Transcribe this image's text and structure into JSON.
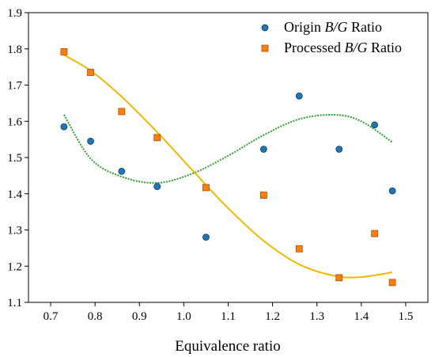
{
  "chart_data": {
    "type": "scatter",
    "xlabel": "Equivalence ratio",
    "ylabel": "",
    "xlim": [
      0.65,
      1.55
    ],
    "ylim": [
      1.1,
      1.9
    ],
    "xticks": [
      "0.7",
      "0.8",
      "0.9",
      "1.0",
      "1.1",
      "1.2",
      "1.3",
      "1.4",
      "1.5"
    ],
    "yticks": [
      "1.1",
      "1.2",
      "1.3",
      "1.4",
      "1.5",
      "1.6",
      "1.7",
      "1.8",
      "1.9"
    ],
    "grid": false,
    "legend_position": "top-right",
    "series": [
      {
        "legend_parts": [
          "Origin ",
          "B/G",
          " Ratio"
        ],
        "marker": "circle",
        "color": "#1f77b4",
        "x": [
          0.73,
          0.79,
          0.86,
          0.94,
          1.05,
          1.18,
          1.26,
          1.35,
          1.43,
          1.47
        ],
        "y": [
          1.585,
          1.545,
          1.462,
          1.42,
          1.28,
          1.523,
          1.67,
          1.523,
          1.59,
          1.408
        ],
        "fit": {
          "style": "dotted",
          "color": "#2ca02c",
          "x": [
            0.73,
            0.79,
            0.86,
            0.94,
            1.02,
            1.1,
            1.18,
            1.26,
            1.34,
            1.4,
            1.47
          ],
          "y": [
            1.618,
            1.497,
            1.447,
            1.43,
            1.456,
            1.505,
            1.562,
            1.606,
            1.618,
            1.6,
            1.542
          ]
        }
      },
      {
        "legend_parts": [
          "Processed ",
          "B/G",
          " Ratio"
        ],
        "marker": "square",
        "color": "#ff7f0e",
        "x": [
          0.73,
          0.79,
          0.86,
          0.94,
          1.05,
          1.18,
          1.26,
          1.35,
          1.43,
          1.47
        ],
        "y": [
          1.792,
          1.735,
          1.627,
          1.555,
          1.417,
          1.396,
          1.248,
          1.168,
          1.29,
          1.155
        ],
        "fit": {
          "style": "solid",
          "color": "#f0b800",
          "x": [
            0.73,
            0.79,
            0.86,
            0.94,
            1.02,
            1.1,
            1.18,
            1.26,
            1.34,
            1.4,
            1.47
          ],
          "y": [
            1.783,
            1.74,
            1.668,
            1.57,
            1.464,
            1.36,
            1.27,
            1.205,
            1.173,
            1.17,
            1.183
          ]
        }
      }
    ]
  }
}
